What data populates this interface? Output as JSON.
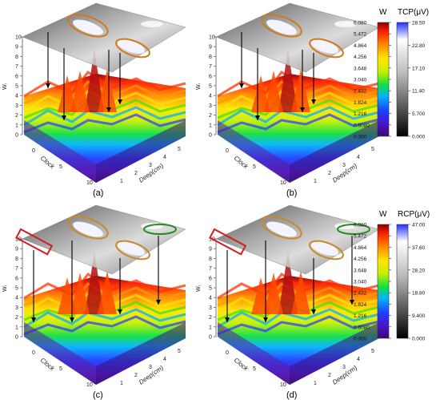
{
  "chart_data": [
    {
      "panel": "a",
      "type": "area",
      "plot_label": "(a)",
      "ylabel": "Wᵢ",
      "xlabel": "Clock",
      "zlabel": "Deep(cm)",
      "yticks": [
        "0",
        "1",
        "2",
        "3",
        "4",
        "5",
        "6",
        "7",
        "8",
        "9",
        "10"
      ],
      "xticks": [
        "0",
        "5",
        "10"
      ],
      "zticks": [
        "1",
        "2",
        "3",
        "4",
        "5"
      ],
      "grid": true,
      "legend": "right",
      "projection_plane": "TCP"
    },
    {
      "panel": "b",
      "type": "area",
      "plot_label": "(b)",
      "ylabel": "Wᵢ",
      "xlabel": "Clock",
      "zlabel": "Deep(cm)",
      "yticks": [
        "0",
        "1",
        "2",
        "3",
        "4",
        "5",
        "6",
        "7",
        "8",
        "9",
        "10"
      ],
      "xticks": [
        "0",
        "5",
        "10"
      ],
      "zticks": [
        "1",
        "2",
        "3",
        "4",
        "5"
      ],
      "grid": true,
      "legend": "right",
      "projection_plane": "TCP"
    },
    {
      "panel": "c",
      "type": "area",
      "plot_label": "(c)",
      "ylabel": "Wᵢ",
      "xlabel": "Clock",
      "zlabel": "Deep(cm)",
      "yticks": [
        "0",
        "1",
        "2",
        "3",
        "4",
        "5",
        "6",
        "7",
        "8",
        "9",
        "10"
      ],
      "xticks": [
        "0",
        "5",
        "10"
      ],
      "zticks": [
        "1",
        "2",
        "3",
        "4",
        "5"
      ],
      "grid": true,
      "legend": "right",
      "projection_plane": "RCP"
    },
    {
      "panel": "d",
      "type": "area",
      "plot_label": "(d)",
      "ylabel": "Wᵢ",
      "xlabel": "Clock",
      "zlabel": "Deep(cm)",
      "yticks": [
        "0",
        "1",
        "2",
        "3",
        "4",
        "5",
        "6",
        "7",
        "8",
        "9",
        "10"
      ],
      "xticks": [
        "0",
        "5",
        "10"
      ],
      "zticks": [
        "1",
        "2",
        "3",
        "4",
        "5"
      ],
      "grid": true,
      "legend": "right",
      "projection_plane": "RCP"
    }
  ],
  "colorbars": [
    {
      "id": "top",
      "w_title": "W",
      "w_ticks": [
        "6.080",
        "5.472",
        "4.864",
        "4.256",
        "3.648",
        "3.040",
        "2.432",
        "1.824",
        "1.216",
        "0.6080",
        "0.000"
      ],
      "p_title": "TCP(μV)",
      "p_ticks": [
        "28.50",
        "22.80",
        "17.10",
        "11.40",
        "5.700",
        "0.000"
      ]
    },
    {
      "id": "bottom",
      "w_title": "W",
      "w_ticks": [
        "6.080",
        "5.472",
        "4.864",
        "4.256",
        "3.648",
        "3.040",
        "2.432",
        "1.824",
        "1.216",
        "0.6080",
        "0.000"
      ],
      "p_title": "RCP(μV)",
      "p_ticks": [
        "47.00",
        "37.60",
        "28.20",
        "18.80",
        "9.400",
        "0.000"
      ]
    }
  ]
}
